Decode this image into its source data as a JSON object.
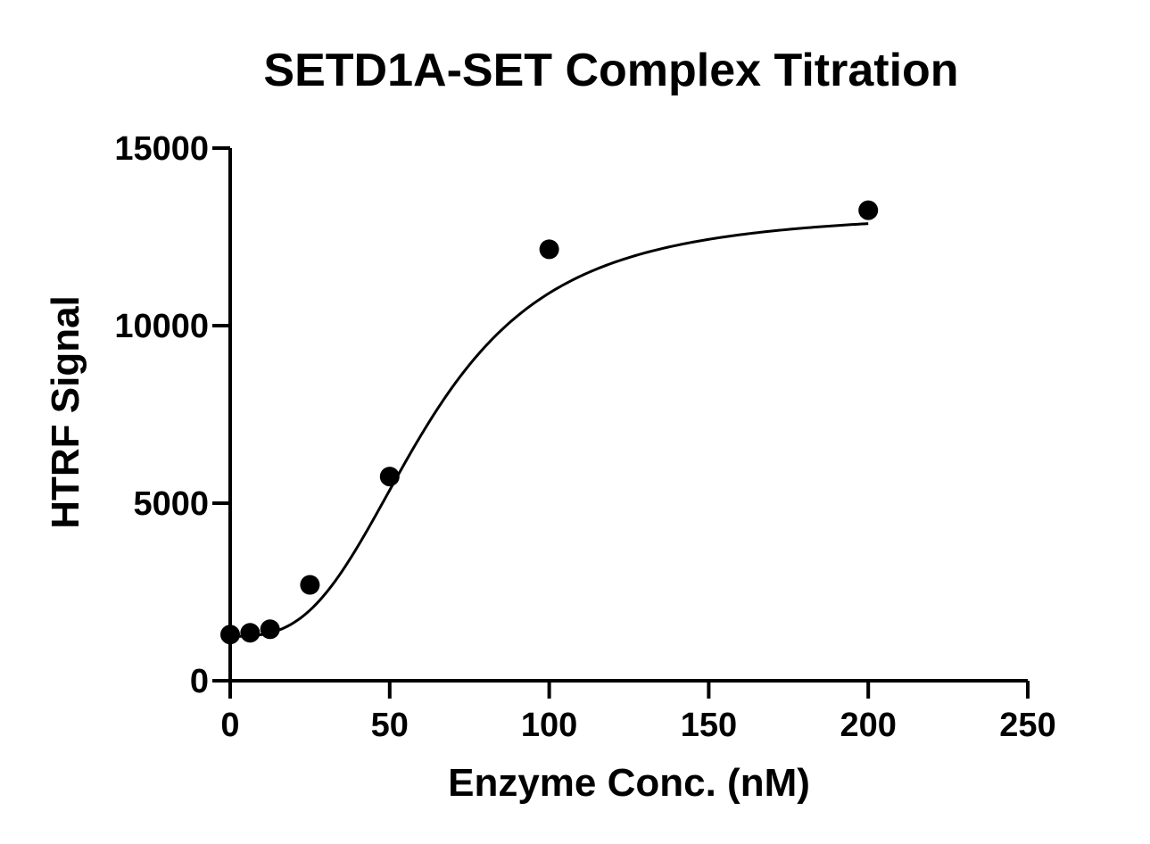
{
  "chart_data": {
    "type": "scatter",
    "title": "SETD1A-SET Complex Titration",
    "xlabel": "Enzyme Conc. (nM)",
    "ylabel": "HTRF Signal",
    "xlim": [
      0,
      250
    ],
    "ylim": [
      0,
      15000
    ],
    "xticks": [
      0,
      50,
      100,
      150,
      200,
      250
    ],
    "yticks": [
      0,
      5000,
      10000,
      15000
    ],
    "xtick_labels": [
      "0",
      "50",
      "100",
      "150",
      "200",
      "250"
    ],
    "ytick_labels": [
      "0",
      "5000",
      "10000",
      "15000"
    ],
    "grid": false,
    "legend": "none",
    "series": [
      {
        "x": [
          0,
          6.25,
          12.5,
          25,
          50,
          100,
          200
        ],
        "y": [
          1300,
          1350,
          1450,
          2700,
          5750,
          12150,
          13250
        ],
        "marker": "filled-circle",
        "fit": "sigmoidal"
      }
    ],
    "colors": {
      "marks": "#000000",
      "background": "#ffffff"
    }
  }
}
